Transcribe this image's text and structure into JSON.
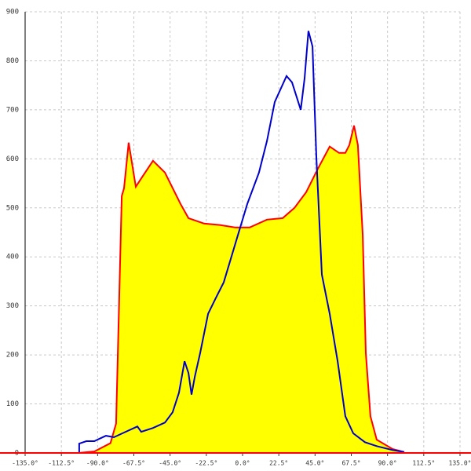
{
  "chart_data": {
    "type": "area",
    "xlim": [
      -135,
      135
    ],
    "ylim": [
      0,
      900
    ],
    "xticks": [
      {
        "value": -135,
        "label": "-135.0°"
      },
      {
        "value": -112.5,
        "label": "-112.5°"
      },
      {
        "value": -90,
        "label": "-90.0°"
      },
      {
        "value": -67.5,
        "label": "-67.5°"
      },
      {
        "value": -45,
        "label": "-45.0°"
      },
      {
        "value": -22.5,
        "label": "-22.5°"
      },
      {
        "value": 0,
        "label": "0.0°"
      },
      {
        "value": 22.5,
        "label": "22.5°"
      },
      {
        "value": 45,
        "label": "45.0°"
      },
      {
        "value": 67.5,
        "label": "67.5°"
      },
      {
        "value": 90,
        "label": "90.0°"
      },
      {
        "value": 112.5,
        "label": "112.5°"
      },
      {
        "value": 135,
        "label": "135.0°"
      }
    ],
    "yticks": [
      0,
      100,
      200,
      300,
      400,
      500,
      600,
      700,
      800,
      900
    ],
    "grid": true,
    "axis_color": "#ff0000",
    "series": [
      {
        "color": "#ff0000",
        "fill": "#ffff00",
        "x": [
          -101.9,
          -92,
          -82,
          -78.5,
          -75,
          -73.6,
          -70.7,
          -66.3,
          -62.9,
          -55.6,
          -48.2,
          -38.5,
          -33.6,
          -23.9,
          -14.1,
          -4.4,
          4.4,
          15.1,
          24.9,
          32.2,
          39.5,
          46.8,
          54.1,
          59.9,
          63.8,
          66.3,
          69.2,
          71.6,
          74.6,
          76.5,
          79.4,
          83.3,
          93.1,
          100.4
        ],
        "values": [
          0,
          3,
          20,
          60,
          524,
          540,
          633,
          543,
          560,
          596,
          572,
          508,
          479,
          468,
          465,
          460,
          460,
          476,
          479,
          500,
          532,
          580,
          625,
          612,
          612,
          628,
          668,
          628,
          444,
          204,
          75,
          27,
          8,
          2
        ]
      },
      {
        "color": "#0000cc",
        "fill": null,
        "x": [
          -101.4,
          -101.4,
          -97,
          -92,
          -88.2,
          -84.8,
          -79.9,
          -72.6,
          -65.3,
          -62.9,
          -55.6,
          -48.2,
          -43.4,
          -39.5,
          -36,
          -33.6,
          -31.7,
          -29.7,
          -26.3,
          -21.4,
          -16.6,
          -11.7,
          -4.4,
          2.9,
          10.2,
          15.1,
          20,
          27.3,
          30.7,
          36.1,
          38.5,
          40.9,
          43.4,
          45.8,
          49.2,
          54.1,
          59,
          63.8,
          68.7,
          76,
          83.3,
          93.1,
          100.4
        ],
        "values": [
          0,
          19,
          24,
          24,
          30,
          35,
          32,
          43,
          54,
          43,
          51,
          62,
          83,
          123,
          187,
          163,
          119,
          155,
          204,
          284,
          316,
          348,
          428,
          508,
          572,
          636,
          716,
          769,
          756,
          700,
          764,
          861,
          829,
          604,
          364,
          284,
          187,
          75,
          40,
          22,
          14,
          6,
          2
        ]
      }
    ]
  }
}
